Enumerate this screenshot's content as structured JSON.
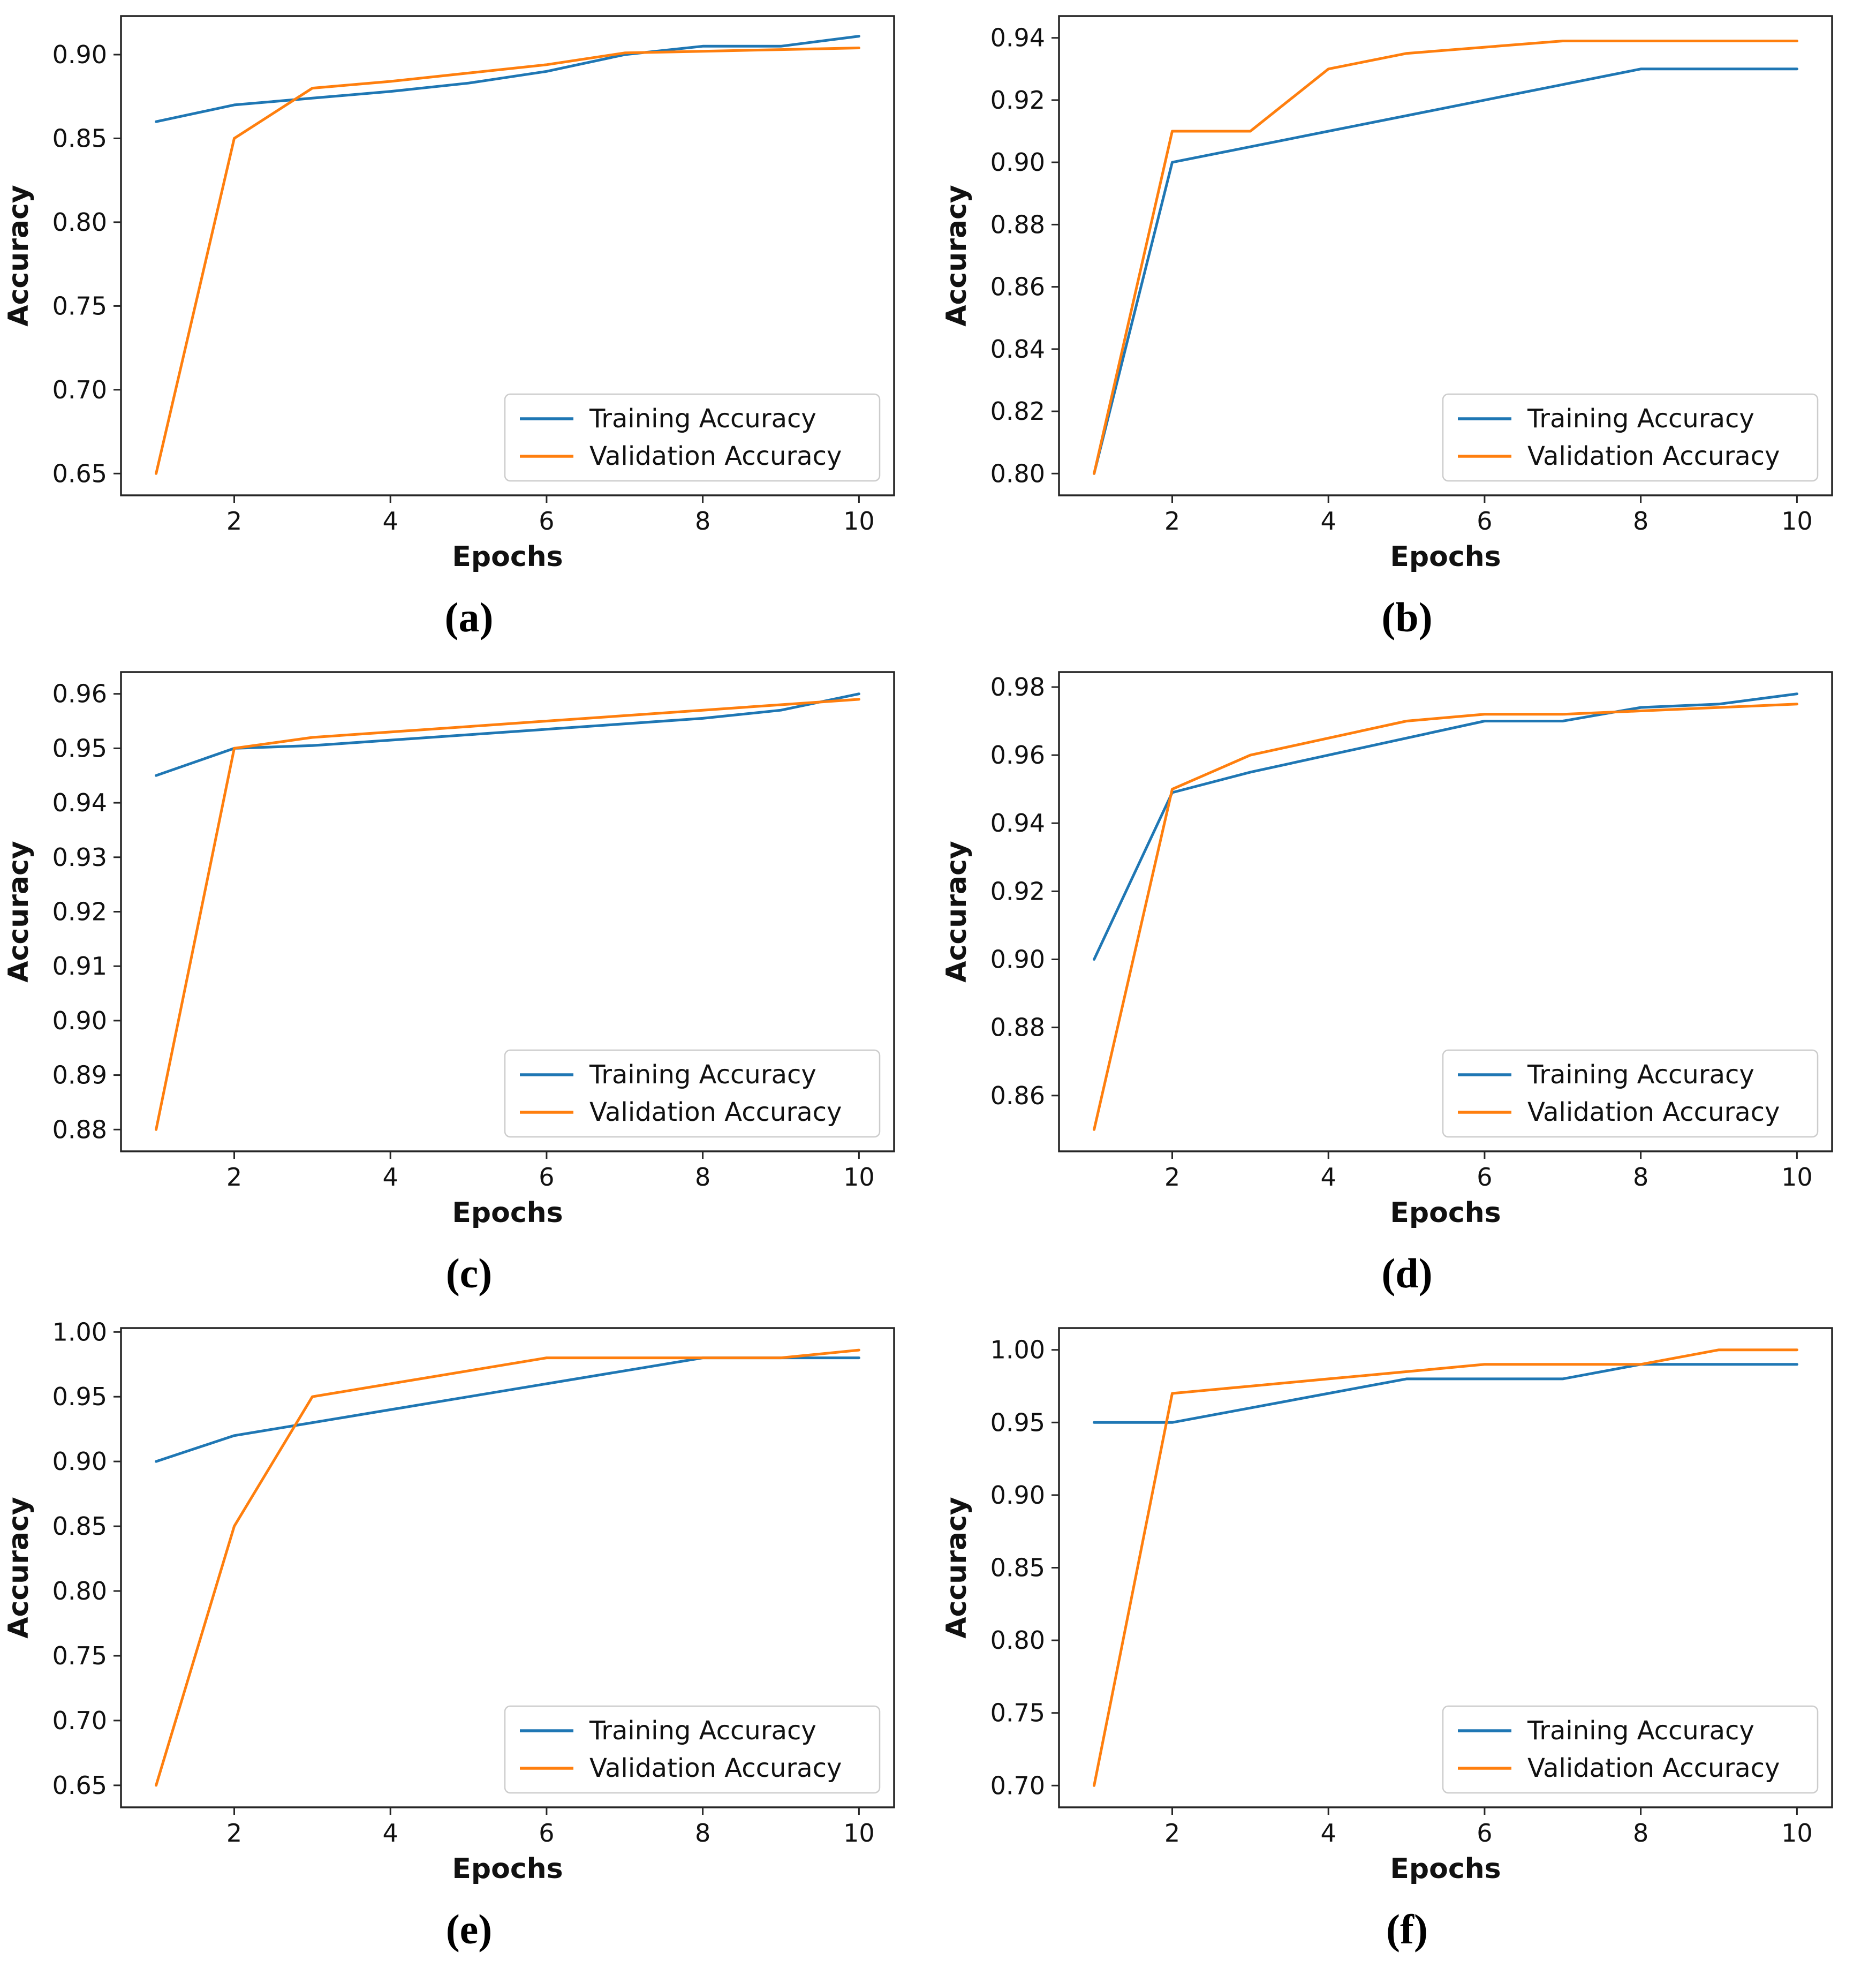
{
  "style": {
    "background": "#ffffff",
    "training_color": "#1f77b4",
    "validation_color": "#ff7f0e",
    "axis_color": "#262626",
    "text_color": "#111111",
    "legend_border": "#cccccc"
  },
  "legend_labels": [
    "Training Accuracy",
    "Validation Accuracy"
  ],
  "chart_data": [
    {
      "type": "line",
      "caption": "(a)",
      "xlabel": "Epochs",
      "ylabel": "Accuracy",
      "x": [
        1,
        2,
        3,
        4,
        5,
        6,
        7,
        8,
        9,
        10
      ],
      "xlim": [
        0.55,
        10.45
      ],
      "ylim": [
        0.637,
        0.923
      ],
      "xticks": [
        2,
        4,
        6,
        8,
        10
      ],
      "xtick_labels": [
        "2",
        "4",
        "6",
        "8",
        "10"
      ],
      "yticks": [
        0.65,
        0.7,
        0.75,
        0.8,
        0.85,
        0.9
      ],
      "ytick_labels": [
        "0.65",
        "0.70",
        "0.75",
        "0.80",
        "0.85",
        "0.90"
      ],
      "grid": false,
      "legend_position": "lower right",
      "series": [
        {
          "id": "training",
          "name": "Training Accuracy",
          "color": "#1f77b4",
          "values": [
            0.86,
            0.87,
            0.874,
            0.878,
            0.883,
            0.89,
            0.9,
            0.905,
            0.905,
            0.911
          ]
        },
        {
          "id": "validation",
          "name": "Validation Accuracy",
          "color": "#ff7f0e",
          "values": [
            0.65,
            0.85,
            0.88,
            0.884,
            0.889,
            0.894,
            0.901,
            0.902,
            0.903,
            0.904
          ]
        }
      ]
    },
    {
      "type": "line",
      "caption": "(b)",
      "xlabel": "Epochs",
      "ylabel": "Accuracy",
      "x": [
        1,
        2,
        3,
        4,
        5,
        6,
        7,
        8,
        9,
        10
      ],
      "xlim": [
        0.55,
        10.45
      ],
      "ylim": [
        0.793,
        0.947
      ],
      "xticks": [
        2,
        4,
        6,
        8,
        10
      ],
      "xtick_labels": [
        "2",
        "4",
        "6",
        "8",
        "10"
      ],
      "yticks": [
        0.8,
        0.82,
        0.84,
        0.86,
        0.88,
        0.9,
        0.92,
        0.94
      ],
      "ytick_labels": [
        "0.80",
        "0.82",
        "0.84",
        "0.86",
        "0.88",
        "0.90",
        "0.92",
        "0.94"
      ],
      "grid": false,
      "legend_position": "lower right",
      "series": [
        {
          "id": "training",
          "name": "Training Accuracy",
          "color": "#1f77b4",
          "values": [
            0.8,
            0.9,
            0.905,
            0.91,
            0.915,
            0.92,
            0.925,
            0.93,
            0.93,
            0.93
          ]
        },
        {
          "id": "validation",
          "name": "Validation Accuracy",
          "color": "#ff7f0e",
          "values": [
            0.8,
            0.91,
            0.91,
            0.93,
            0.935,
            0.937,
            0.939,
            0.939,
            0.939,
            0.939
          ]
        }
      ]
    },
    {
      "type": "line",
      "caption": "(c)",
      "xlabel": "Epochs",
      "ylabel": "Accuracy",
      "x": [
        1,
        2,
        3,
        4,
        5,
        6,
        7,
        8,
        9,
        10
      ],
      "xlim": [
        0.55,
        10.45
      ],
      "ylim": [
        0.876,
        0.964
      ],
      "xticks": [
        2,
        4,
        6,
        8,
        10
      ],
      "xtick_labels": [
        "2",
        "4",
        "6",
        "8",
        "10"
      ],
      "yticks": [
        0.88,
        0.89,
        0.9,
        0.91,
        0.92,
        0.93,
        0.94,
        0.95,
        0.96
      ],
      "ytick_labels": [
        "0.88",
        "0.89",
        "0.90",
        "0.91",
        "0.92",
        "0.93",
        "0.94",
        "0.95",
        "0.96"
      ],
      "grid": false,
      "legend_position": "lower right",
      "series": [
        {
          "id": "training",
          "name": "Training Accuracy",
          "color": "#1f77b4",
          "values": [
            0.945,
            0.95,
            0.9505,
            0.9515,
            0.9525,
            0.9535,
            0.9545,
            0.9555,
            0.957,
            0.96
          ]
        },
        {
          "id": "validation",
          "name": "Validation Accuracy",
          "color": "#ff7f0e",
          "values": [
            0.88,
            0.95,
            0.952,
            0.953,
            0.954,
            0.955,
            0.956,
            0.957,
            0.958,
            0.959
          ]
        }
      ]
    },
    {
      "type": "line",
      "caption": "(d)",
      "xlabel": "Epochs",
      "ylabel": "Accuracy",
      "x": [
        1,
        2,
        3,
        4,
        5,
        6,
        7,
        8,
        9,
        10
      ],
      "xlim": [
        0.55,
        10.45
      ],
      "ylim": [
        0.8436,
        0.9844
      ],
      "xticks": [
        2,
        4,
        6,
        8,
        10
      ],
      "xtick_labels": [
        "2",
        "4",
        "6",
        "8",
        "10"
      ],
      "yticks": [
        0.86,
        0.88,
        0.9,
        0.92,
        0.94,
        0.96,
        0.98
      ],
      "ytick_labels": [
        "0.86",
        "0.88",
        "0.90",
        "0.92",
        "0.94",
        "0.96",
        "0.98"
      ],
      "grid": false,
      "legend_position": "lower right",
      "series": [
        {
          "id": "training",
          "name": "Training Accuracy",
          "color": "#1f77b4",
          "values": [
            0.9,
            0.949,
            0.955,
            0.96,
            0.965,
            0.97,
            0.97,
            0.974,
            0.975,
            0.978
          ]
        },
        {
          "id": "validation",
          "name": "Validation Accuracy",
          "color": "#ff7f0e",
          "values": [
            0.85,
            0.95,
            0.96,
            0.965,
            0.97,
            0.972,
            0.972,
            0.973,
            0.974,
            0.975
          ]
        }
      ]
    },
    {
      "type": "line",
      "caption": "(e)",
      "xlabel": "Epochs",
      "ylabel": "Accuracy",
      "x": [
        1,
        2,
        3,
        4,
        5,
        6,
        7,
        8,
        9,
        10
      ],
      "xlim": [
        0.55,
        10.45
      ],
      "ylim": [
        0.633,
        1.003
      ],
      "xticks": [
        2,
        4,
        6,
        8,
        10
      ],
      "xtick_labels": [
        "2",
        "4",
        "6",
        "8",
        "10"
      ],
      "yticks": [
        0.65,
        0.7,
        0.75,
        0.8,
        0.85,
        0.9,
        0.95,
        1.0
      ],
      "ytick_labels": [
        "0.65",
        "0.70",
        "0.75",
        "0.80",
        "0.85",
        "0.90",
        "0.95",
        "1.00"
      ],
      "grid": false,
      "legend_position": "lower right",
      "series": [
        {
          "id": "training",
          "name": "Training Accuracy",
          "color": "#1f77b4",
          "values": [
            0.9,
            0.92,
            0.93,
            0.94,
            0.95,
            0.96,
            0.97,
            0.98,
            0.98,
            0.98
          ]
        },
        {
          "id": "validation",
          "name": "Validation Accuracy",
          "color": "#ff7f0e",
          "values": [
            0.65,
            0.85,
            0.95,
            0.96,
            0.97,
            0.98,
            0.98,
            0.98,
            0.98,
            0.986
          ]
        }
      ]
    },
    {
      "type": "line",
      "caption": "(f)",
      "xlabel": "Epochs",
      "ylabel": "Accuracy",
      "x": [
        1,
        2,
        3,
        4,
        5,
        6,
        7,
        8,
        9,
        10
      ],
      "xlim": [
        0.55,
        10.45
      ],
      "ylim": [
        0.685,
        1.015
      ],
      "xticks": [
        2,
        4,
        6,
        8,
        10
      ],
      "xtick_labels": [
        "2",
        "4",
        "6",
        "8",
        "10"
      ],
      "yticks": [
        0.7,
        0.75,
        0.8,
        0.85,
        0.9,
        0.95,
        1.0
      ],
      "ytick_labels": [
        "0.70",
        "0.75",
        "0.80",
        "0.85",
        "0.90",
        "0.95",
        "1.00"
      ],
      "grid": false,
      "legend_position": "lower right",
      "series": [
        {
          "id": "training",
          "name": "Training Accuracy",
          "color": "#1f77b4",
          "values": [
            0.95,
            0.95,
            0.96,
            0.97,
            0.98,
            0.98,
            0.98,
            0.99,
            0.99,
            0.99
          ]
        },
        {
          "id": "validation",
          "name": "Validation Accuracy",
          "color": "#ff7f0e",
          "values": [
            0.7,
            0.97,
            0.975,
            0.98,
            0.985,
            0.99,
            0.99,
            0.99,
            1.0,
            1.0
          ]
        }
      ]
    }
  ]
}
